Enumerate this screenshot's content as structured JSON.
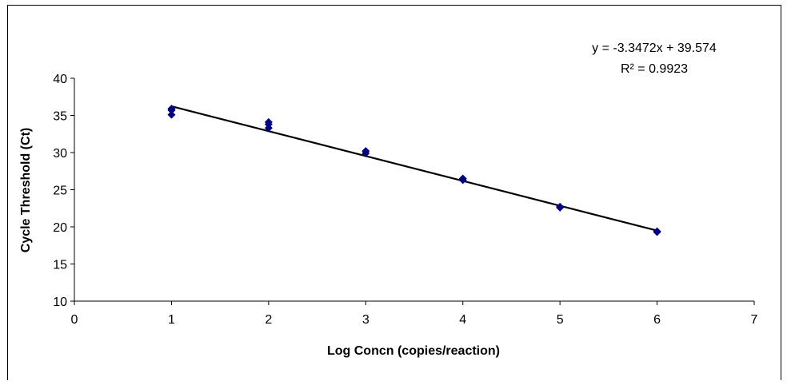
{
  "chart_data": {
    "type": "scatter",
    "title": "",
    "xlabel": "Log Concn (copies/reaction)",
    "ylabel": "Cycle Threshold (Ct)",
    "xlim": [
      0,
      7
    ],
    "ylim": [
      10,
      40
    ],
    "x_ticks": [
      "0",
      "1",
      "2",
      "3",
      "4",
      "5",
      "6",
      "7"
    ],
    "y_ticks": [
      "10",
      "15",
      "20",
      "25",
      "30",
      "35",
      "40"
    ],
    "grid": false,
    "legend": "none",
    "marker_color": "#000080",
    "line_color": "#000000",
    "points": [
      {
        "x": 1,
        "y": 35.1
      },
      {
        "x": 1,
        "y": 35.7
      },
      {
        "x": 1,
        "y": 35.9
      },
      {
        "x": 2,
        "y": 33.3
      },
      {
        "x": 2,
        "y": 33.8
      },
      {
        "x": 2,
        "y": 34.1
      },
      {
        "x": 3,
        "y": 29.9
      },
      {
        "x": 3,
        "y": 30.2
      },
      {
        "x": 4,
        "y": 26.3
      },
      {
        "x": 4,
        "y": 26.5
      },
      {
        "x": 5,
        "y": 22.6
      },
      {
        "x": 5,
        "y": 22.7
      },
      {
        "x": 6,
        "y": 19.3
      },
      {
        "x": 6,
        "y": 19.4
      }
    ],
    "trendline": {
      "slope": -3.3472,
      "intercept": 39.574,
      "x_range": [
        1,
        6
      ],
      "equation": "y = -3.3472x + 39.574",
      "r_squared": "R² = 0.9923"
    }
  }
}
